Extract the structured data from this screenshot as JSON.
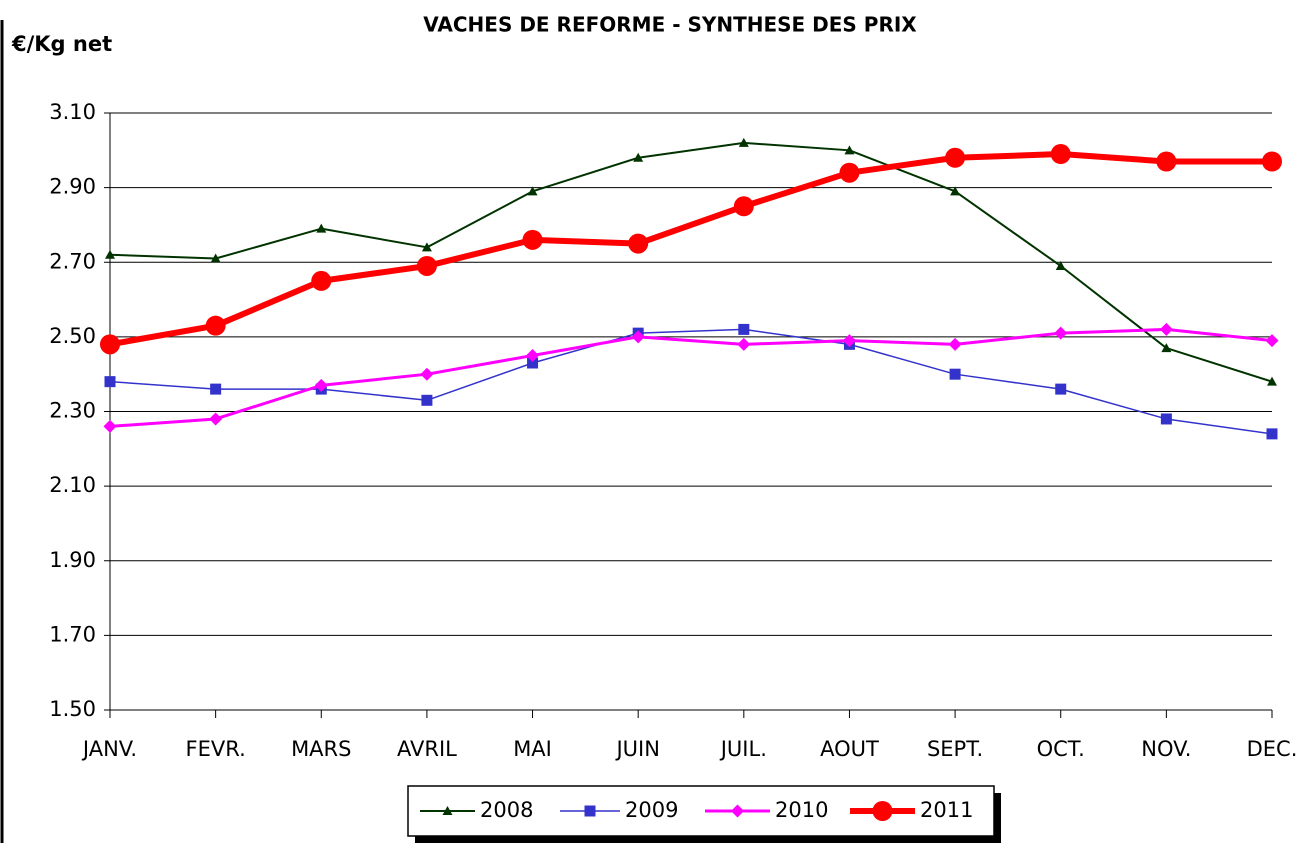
{
  "chart_data": {
    "type": "line",
    "title": "VACHES DE REFORME - SYNTHESE DES PRIX",
    "y_label": "€/Kg net",
    "categories": [
      "JANV.",
      "FEVR.",
      "MARS",
      "AVRIL",
      "MAI",
      "JUIN",
      "JUIL.",
      "AOUT",
      "SEPT.",
      "OCT.",
      "NOV.",
      "DEC."
    ],
    "series": [
      {
        "name": "2008",
        "color": "#003300",
        "marker": "triangle",
        "values": [
          2.72,
          2.71,
          2.79,
          2.74,
          2.89,
          2.98,
          3.02,
          3.0,
          2.89,
          2.69,
          2.47,
          2.38
        ]
      },
      {
        "name": "2009",
        "color": "#3333cc",
        "marker": "square",
        "values": [
          2.38,
          2.36,
          2.36,
          2.33,
          2.43,
          2.51,
          2.52,
          2.48,
          2.4,
          2.36,
          2.28,
          2.24
        ]
      },
      {
        "name": "2010",
        "color": "#ff00ff",
        "marker": "diamond",
        "values": [
          2.26,
          2.28,
          2.37,
          2.4,
          2.45,
          2.5,
          2.48,
          2.49,
          2.48,
          2.51,
          2.52,
          2.49
        ]
      },
      {
        "name": "2011",
        "color": "#ff0000",
        "marker": "circle",
        "values": [
          2.48,
          2.53,
          2.65,
          2.69,
          2.76,
          2.75,
          2.85,
          2.94,
          2.98,
          2.99,
          2.97,
          2.97
        ]
      }
    ],
    "ylim": [
      1.5,
      3.1
    ],
    "yticks": [
      {
        "value": 1.5,
        "label": "1.50"
      },
      {
        "value": 1.7,
        "label": "1.70"
      },
      {
        "value": 1.9,
        "label": "1.90"
      },
      {
        "value": 2.1,
        "label": "2.10"
      },
      {
        "value": 2.3,
        "label": "2.30"
      },
      {
        "value": 2.5,
        "label": "2.50"
      },
      {
        "value": 2.7,
        "label": "2.70"
      },
      {
        "value": 2.9,
        "label": "2.90"
      },
      {
        "value": 3.1,
        "label": "3.10"
      }
    ],
    "grid": true,
    "legend": "bottom"
  }
}
